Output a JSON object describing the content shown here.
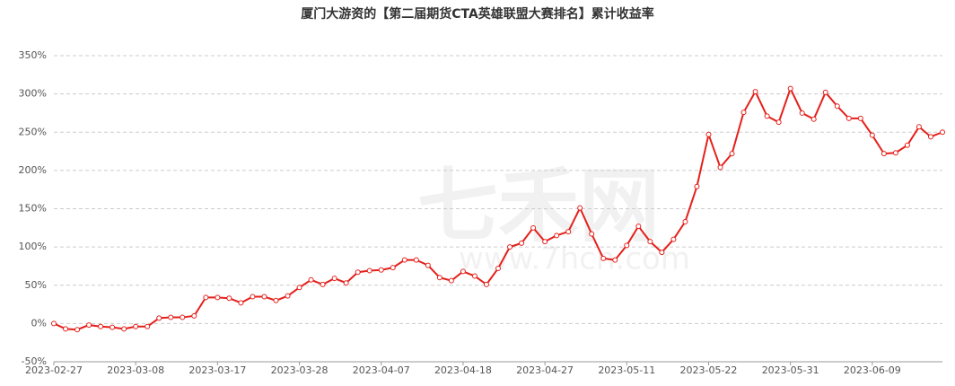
{
  "chart_data": {
    "type": "line",
    "title": "厦门大游资的【第二届期货CTA英雄联盟大赛排名】累计收益率",
    "watermark": [
      "七禾网",
      "www.7hcn.com"
    ],
    "categories": [
      "2023-02-27",
      null,
      null,
      null,
      null,
      null,
      null,
      "2023-03-08",
      null,
      null,
      null,
      null,
      null,
      null,
      "2023-03-17",
      null,
      null,
      null,
      null,
      null,
      null,
      "2023-03-28",
      null,
      null,
      null,
      null,
      null,
      null,
      "2023-04-07",
      null,
      null,
      null,
      null,
      null,
      null,
      "2023-04-18",
      null,
      null,
      null,
      null,
      null,
      null,
      "2023-04-27",
      null,
      null,
      null,
      null,
      null,
      null,
      "2023-05-11",
      null,
      null,
      null,
      null,
      null,
      null,
      "2023-05-22",
      null,
      null,
      null,
      null,
      null,
      null,
      "2023-05-31",
      null,
      null,
      null,
      null,
      null,
      null,
      "2023-06-09",
      null,
      null,
      null,
      null,
      null,
      null
    ],
    "series": [
      {
        "name": "累计收益率",
        "color": "#e4201b",
        "values": [
          0,
          -7,
          -8,
          -2,
          -4,
          -5,
          -7,
          -4,
          -4,
          7,
          8,
          8,
          10,
          34,
          34,
          33,
          27,
          35,
          35,
          30,
          36,
          47,
          57,
          51,
          59,
          53,
          67,
          69,
          70,
          73,
          83,
          83,
          76,
          60,
          56,
          68,
          62,
          51,
          72,
          100,
          105,
          125,
          107,
          115,
          120,
          151,
          117,
          85,
          83,
          102,
          127,
          107,
          93,
          110,
          133,
          179,
          247,
          204,
          222,
          276,
          303,
          271,
          263,
          307,
          275,
          267,
          302,
          284,
          268,
          268,
          246,
          222,
          223,
          233,
          257,
          244,
          250
        ]
      }
    ],
    "ylim": [
      -50,
      350
    ],
    "yticks": [
      {
        "value": -50,
        "label": "-50%"
      },
      {
        "value": 0,
        "label": "0%"
      },
      {
        "value": 50,
        "label": "50%"
      },
      {
        "value": 100,
        "label": "100%"
      },
      {
        "value": 150,
        "label": "150%"
      },
      {
        "value": 200,
        "label": "200%"
      },
      {
        "value": 250,
        "label": "250%"
      },
      {
        "value": 300,
        "label": "300%"
      },
      {
        "value": 350,
        "label": "350%"
      }
    ],
    "grid": true
  }
}
